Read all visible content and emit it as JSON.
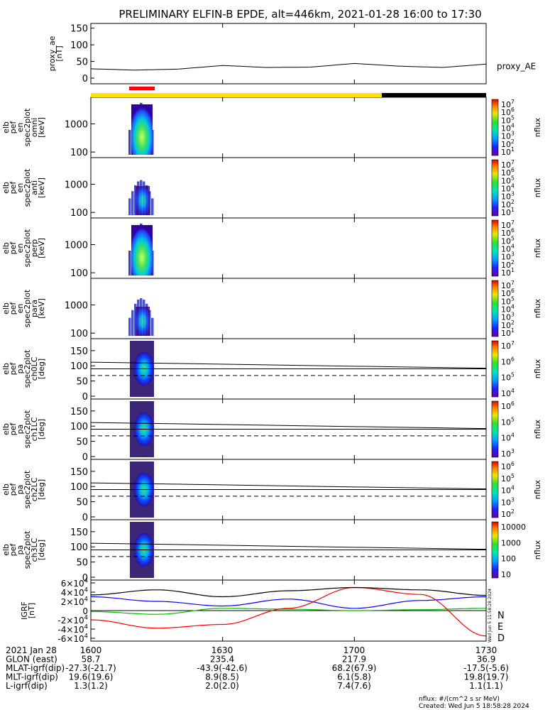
{
  "title": "PRELIMINARY ELFIN-B EPDE, alt=446km, 2021-01-28 16:00 to 17:30",
  "colors": {
    "yellow_bar": "#ffe000",
    "black_bar": "#000000",
    "red_marker": "#ff0000",
    "igrf_n": "#0000ff",
    "igrf_e": "#00c000",
    "igrf_d": "#ff0000",
    "igrf_total": "#000000"
  },
  "time_axis": {
    "labels": [
      "1600",
      "1630",
      "1700",
      "1730"
    ],
    "rows": [
      {
        "label": "2021 Jan 28",
        "values": [
          "1600",
          "1630",
          "1700",
          "1730"
        ]
      },
      {
        "label": "GLON (east)",
        "values": [
          "58.7",
          "235.4",
          "217.9",
          "36.9"
        ]
      },
      {
        "label": "MLAT-igrf(dip)",
        "values": [
          "-27.3(-21.7)",
          "-43.9(-42.6)",
          "68.2(67.9)",
          "-17.5(-5.6)"
        ]
      },
      {
        "label": "MLT-igrf(dip)",
        "values": [
          "19.6(19.6)",
          "8.9(8.5)",
          "6.1(5.8)",
          "19.8(19.7)"
        ]
      },
      {
        "label": "L-igrf(dip)",
        "values": [
          "1.3(1.2)",
          "2.0(2.0)",
          "7.4(7.6)",
          "1.1(1.1)"
        ]
      }
    ]
  },
  "panels": [
    {
      "id": "proxy_ae",
      "ylabel": [
        "proxy_ae",
        "[nT]"
      ],
      "yticks": [
        "0",
        "50",
        "100",
        "150"
      ],
      "right_label": "proxy_AE"
    },
    {
      "id": "en_omni",
      "ylabel": [
        "elb",
        "pef",
        "en",
        "spec2plot",
        "omni",
        "[keV]"
      ],
      "yticks": [
        "100",
        "1000"
      ],
      "cb_ticks": [
        "10^7",
        "10^6",
        "10^5",
        "10^4",
        "10^3",
        "10^2",
        "10^1"
      ],
      "cb_label": "nflux"
    },
    {
      "id": "en_anti",
      "ylabel": [
        "elb",
        "pef",
        "en",
        "spec2plot",
        "anti",
        "[keV]"
      ],
      "yticks": [
        "100",
        "1000"
      ],
      "cb_ticks": [
        "10^7",
        "10^6",
        "10^5",
        "10^4",
        "10^3",
        "10^2",
        "10^1"
      ],
      "cb_label": "nflux"
    },
    {
      "id": "en_perp",
      "ylabel": [
        "elb",
        "pef",
        "en",
        "spec2plot",
        "perp",
        "[keV]"
      ],
      "yticks": [
        "100",
        "1000"
      ],
      "cb_ticks": [
        "10^7",
        "10^6",
        "10^5",
        "10^4",
        "10^3",
        "10^2",
        "10^1"
      ],
      "cb_label": "nflux"
    },
    {
      "id": "en_para",
      "ylabel": [
        "elb",
        "pef",
        "en",
        "spec2plot",
        "para",
        "[keV]"
      ],
      "yticks": [
        "100",
        "1000"
      ],
      "cb_ticks": [
        "10^7",
        "10^6",
        "10^5",
        "10^4",
        "10^3",
        "10^2",
        "10^1"
      ],
      "cb_label": "nflux"
    },
    {
      "id": "pa_ch0",
      "ylabel": [
        "elb",
        "pef",
        "pa",
        "spec2plot",
        "ch0LC",
        "[deg]"
      ],
      "yticks": [
        "0",
        "50",
        "100",
        "150"
      ],
      "cb_ticks": [
        "10^7",
        "10^6",
        "10^5",
        "10^4"
      ],
      "cb_label": "nflux"
    },
    {
      "id": "pa_ch1",
      "ylabel": [
        "elb",
        "pef",
        "pa",
        "spec2plot",
        "ch1LC",
        "[deg]"
      ],
      "yticks": [
        "0",
        "50",
        "100",
        "150"
      ],
      "cb_ticks": [
        "10^6",
        "10^5",
        "10^4",
        "10^3"
      ],
      "cb_label": "nflux"
    },
    {
      "id": "pa_ch2",
      "ylabel": [
        "elb",
        "pef",
        "pa",
        "spec2plot",
        "ch2LC",
        "[deg]"
      ],
      "yticks": [
        "0",
        "50",
        "100",
        "150"
      ],
      "cb_ticks": [
        "10^6",
        "10^5",
        "10^4",
        "10^3",
        "10^2"
      ],
      "cb_label": "nflux"
    },
    {
      "id": "pa_ch3",
      "ylabel": [
        "elb",
        "pef",
        "pa",
        "spec2plot",
        "ch3LC",
        "[deg]"
      ],
      "yticks": [
        "0",
        "50",
        "100",
        "150"
      ],
      "cb_ticks": [
        "10000",
        "1000",
        "100",
        "10"
      ],
      "cb_label": "nflux"
    },
    {
      "id": "igrf",
      "ylabel": [
        "IGRF",
        "[nT]"
      ],
      "yticks": [
        "-6×10^4",
        "-4×10^4",
        "-2×10^4",
        "0",
        "2×10^4",
        "4×10^4",
        "6×10^4"
      ],
      "legend": [
        "N",
        "E",
        "D"
      ]
    }
  ],
  "footer": {
    "units": "nflux: #/(cm^2 s sr MeV)",
    "created": "Created: Wed Jun  5 18:58:28 2024",
    "side_stamp": "Wed Jun 5 11:58:28 2024"
  },
  "chart_data": [
    {
      "type": "line",
      "id": "proxy_ae",
      "x": [
        "16:00",
        "16:10",
        "16:20",
        "16:30",
        "16:40",
        "16:50",
        "17:00",
        "17:10",
        "17:20",
        "17:30"
      ],
      "values": [
        28,
        24,
        27,
        38,
        32,
        33,
        44,
        36,
        32,
        42
      ],
      "ylim": [
        0,
        160
      ],
      "ylabel": "proxy_ae [nT]"
    },
    {
      "type": "heatmap",
      "id": "spectrograms",
      "description_values": {
        "active_interval": [
          "16:06",
          "16:10"
        ],
        "energy_range_keV": [
          80,
          7000
        ],
        "pa_center_deg": 90
      },
      "xlim": [
        "16:00",
        "17:30"
      ]
    },
    {
      "type": "line",
      "id": "igrf",
      "x_hours": [
        0,
        0.25,
        0.5,
        0.75,
        1.0,
        1.25,
        1.5
      ],
      "series": [
        {
          "name": "N",
          "values": [
            30000,
            20000,
            10000,
            25000,
            5000,
            22000,
            30000
          ]
        },
        {
          "name": "E",
          "values": [
            -2000,
            -8000,
            5000,
            3000,
            0,
            2000,
            5000
          ]
        },
        {
          "name": "D",
          "values": [
            -20000,
            -38000,
            -30000,
            5000,
            50000,
            35000,
            -55000
          ]
        },
        {
          "name": "total",
          "values": [
            34000,
            45000,
            30000,
            43000,
            50000,
            45000,
            33000
          ]
        }
      ],
      "ylim": [
        -60000,
        60000
      ]
    }
  ]
}
